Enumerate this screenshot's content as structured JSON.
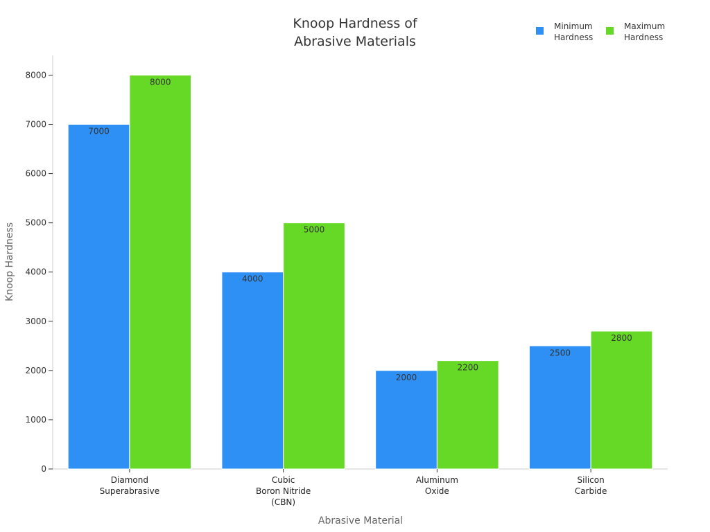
{
  "chart_data": {
    "type": "bar",
    "title": [
      "Knoop Hardness of",
      "Abrasive Materials"
    ],
    "xlabel": "Abrasive Material",
    "ylabel": "Knoop Hardness",
    "ylim": [
      0,
      8400
    ],
    "yticks": [
      0,
      1000,
      2000,
      3000,
      4000,
      5000,
      6000,
      7000,
      8000
    ],
    "categories": [
      [
        "Diamond",
        "Superabrasive"
      ],
      [
        "Cubic",
        "Boron Nitride",
        "(CBN)"
      ],
      [
        "Aluminum",
        "Oxide"
      ],
      [
        "Silicon",
        "Carbide"
      ]
    ],
    "series": [
      {
        "name": [
          "Minimum",
          "Hardness"
        ],
        "color": "#2e90f5",
        "values": [
          7000,
          4000,
          2000,
          2500
        ]
      },
      {
        "name": [
          "Maximum",
          "Hardness"
        ],
        "color": "#66d926",
        "values": [
          8000,
          5000,
          2200,
          2800
        ]
      }
    ],
    "legend_position": "top-right",
    "grid": false
  }
}
